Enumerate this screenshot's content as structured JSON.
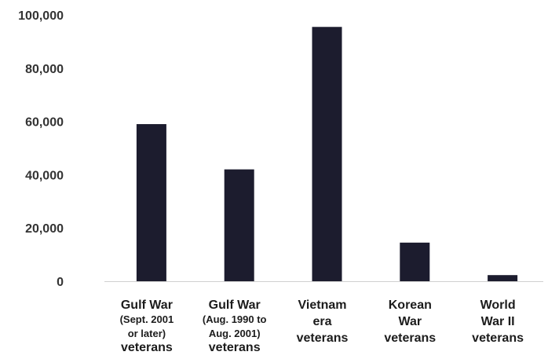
{
  "chart_data": {
    "type": "bar",
    "title": "",
    "xlabel": "",
    "ylabel": "",
    "ylim": [
      0,
      100000
    ],
    "yticks": [
      "0",
      "20,000",
      "40,000",
      "60,000",
      "80,000",
      "100,000"
    ],
    "grid": false,
    "legend": "none",
    "bar_color": "#1c1c2e",
    "categories": [
      "Gulf War (Sept. 2001 or later) veterans",
      "Gulf War (Aug. 1990 to Aug. 2001) veterans",
      "Vietnam era veterans",
      "Korean War veterans",
      "World War II veterans"
    ],
    "category_label_lines": [
      [
        {
          "text": "Gulf War",
          "size": "main"
        },
        {
          "text": "(Sept. 2001",
          "size": "small"
        },
        {
          "text": "or later)",
          "size": "small"
        },
        {
          "text": "veterans",
          "size": "main"
        }
      ],
      [
        {
          "text": "Gulf War",
          "size": "main"
        },
        {
          "text": "(Aug. 1990 to",
          "size": "small"
        },
        {
          "text": "Aug. 2001)",
          "size": "small"
        },
        {
          "text": "veterans",
          "size": "main"
        }
      ],
      [
        {
          "text": "Vietnam",
          "size": "main"
        },
        {
          "text": "era",
          "size": "main"
        },
        {
          "text": "veterans",
          "size": "main"
        }
      ],
      [
        {
          "text": "Korean",
          "size": "main"
        },
        {
          "text": "War",
          "size": "main"
        },
        {
          "text": "veterans",
          "size": "main"
        }
      ],
      [
        {
          "text": "World",
          "size": "main"
        },
        {
          "text": "War II",
          "size": "main"
        },
        {
          "text": "veterans",
          "size": "main"
        }
      ]
    ],
    "values": [
      59000,
      42000,
      95500,
      14500,
      2300
    ]
  }
}
